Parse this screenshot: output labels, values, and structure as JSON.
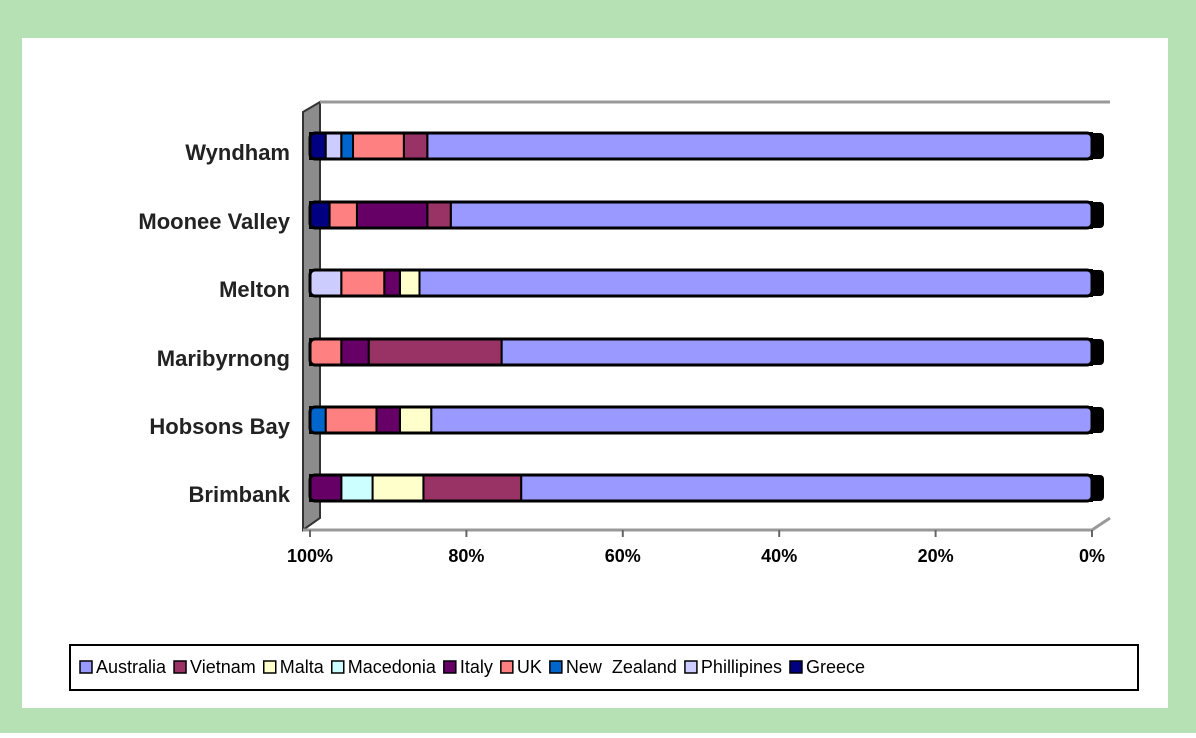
{
  "chart_data": {
    "type": "stacked_bar_horizontal",
    "categories": [
      "Wyndham",
      "Moonee Valley",
      "Melton",
      "Maribyrnong",
      "Hobsons Bay",
      "Brimbank"
    ],
    "series": [
      {
        "name": "Australia",
        "color": "#9999ff",
        "values": [
          85,
          82,
          86,
          75.5,
          84.5,
          73
        ]
      },
      {
        "name": "Vietnam",
        "color": "#993366",
        "values": [
          3,
          3,
          0,
          17,
          0,
          12.5
        ]
      },
      {
        "name": "Malta",
        "color": "#ffffcc",
        "values": [
          0,
          0,
          2.5,
          0,
          4,
          6.5
        ]
      },
      {
        "name": "Macedonia",
        "color": "#ccffff",
        "values": [
          0,
          0,
          0,
          0,
          0,
          4
        ]
      },
      {
        "name": "Italy",
        "color": "#660066",
        "values": [
          0,
          9,
          2,
          3.5,
          3,
          4
        ]
      },
      {
        "name": "UK",
        "color": "#ff8080",
        "values": [
          6.5,
          3.5,
          5.5,
          4,
          6.5,
          0
        ]
      },
      {
        "name": "New  Zealand",
        "color": "#0066cc",
        "values": [
          1.5,
          0,
          0,
          0,
          2,
          0
        ]
      },
      {
        "name": "Phillipines",
        "color": "#ccccff",
        "values": [
          2,
          0,
          4,
          0,
          0,
          0
        ]
      },
      {
        "name": "Greece",
        "color": "#000080",
        "values": [
          2,
          2.5,
          0,
          0,
          0,
          0
        ]
      }
    ],
    "xlim": [
      100,
      0
    ],
    "xticks": [
      {
        "value": 100,
        "label": "100%"
      },
      {
        "value": 80,
        "label": "80%"
      },
      {
        "value": 60,
        "label": "60%"
      },
      {
        "value": 40,
        "label": "40%"
      },
      {
        "value": 20,
        "label": "20%"
      },
      {
        "value": 0,
        "label": "0%"
      }
    ],
    "legend": "bottom"
  }
}
